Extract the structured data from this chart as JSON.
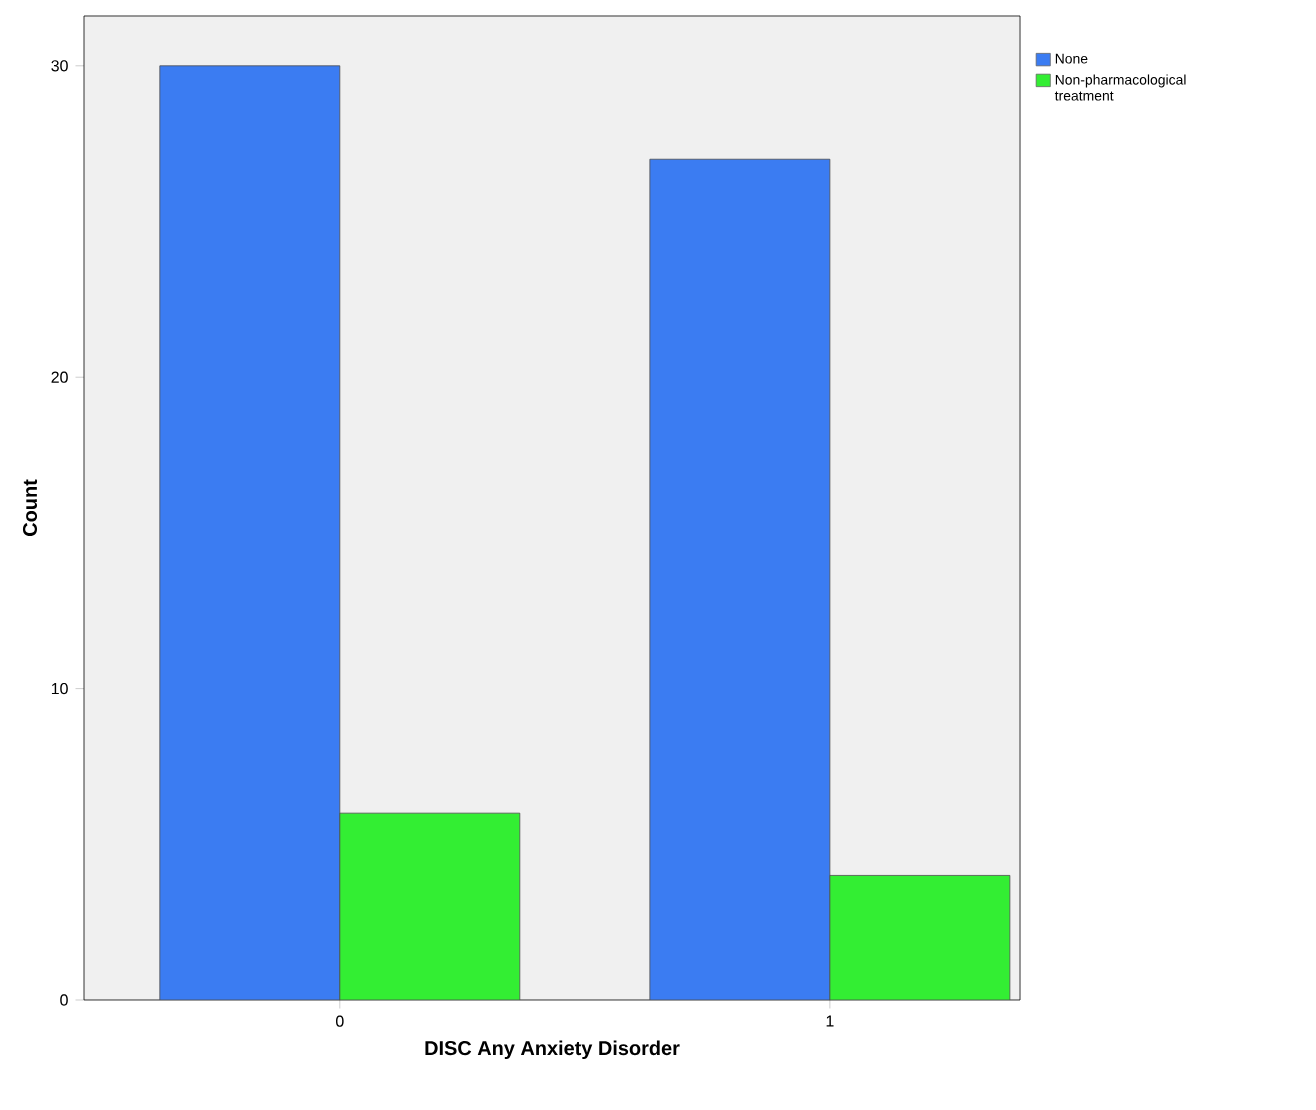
{
  "chart_data": {
    "type": "bar",
    "xlabel": "DISC Any Anxiety Disorder",
    "ylabel": "Count",
    "categories": [
      "0",
      "1"
    ],
    "series": [
      {
        "name": "None",
        "color": "#3b7cf2",
        "values": [
          30,
          27
        ]
      },
      {
        "name": "Non-pharmacological treatment",
        "color": "#33ee33",
        "values": [
          6,
          4
        ]
      }
    ],
    "ylim": [
      0,
      31.6
    ],
    "yticks": [
      0,
      10,
      20,
      30
    ],
    "grid": false,
    "legend": "top right"
  }
}
